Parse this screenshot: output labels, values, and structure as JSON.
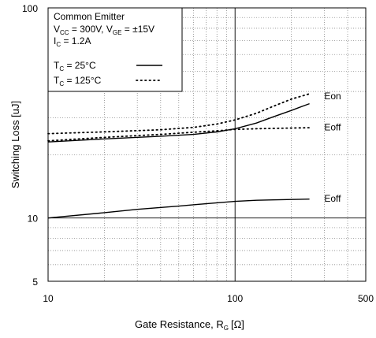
{
  "chart_data": {
    "type": "line",
    "xscale": "log",
    "yscale": "log",
    "xlim": [
      10,
      500
    ],
    "ylim": [
      5,
      100
    ],
    "grid": true,
    "xlabel": "Gate Resistance, R",
    "xlabel_sub": "G",
    "xlabel_unit": "[Ω]",
    "ylabel": "Switching Loss [uJ]",
    "xticks": [
      {
        "value": 10,
        "label": "10"
      },
      {
        "value": 100,
        "label": "100"
      },
      {
        "value": 500,
        "label": "500"
      }
    ],
    "yticks": [
      {
        "value": 5,
        "label": "5"
      },
      {
        "value": 10,
        "label": "10"
      },
      {
        "value": 100,
        "label": "100"
      }
    ],
    "legend": {
      "placement": "top-left",
      "title": "Common Emitter",
      "conditions": [
        {
          "parts": [
            [
              "V",
              "CC",
              " = 300V, "
            ],
            [
              "V",
              "GE",
              " = ±15V"
            ]
          ]
        },
        {
          "parts": [
            [
              "I",
              "C",
              " = 1.2A"
            ]
          ]
        }
      ],
      "entries": [
        {
          "symbol": "T",
          "sub": "C",
          "text": " =   25°C",
          "style": "solid"
        },
        {
          "symbol": "T",
          "sub": "C",
          "text": " = 125°C",
          "style": "dotted"
        }
      ]
    },
    "series": [
      {
        "label": "Eon",
        "style": "solid",
        "temp": "25°C",
        "x": [
          10,
          20,
          40,
          60,
          80,
          100,
          130,
          160,
          200,
          250
        ],
        "y": [
          23,
          23.8,
          24.5,
          25.0,
          25.7,
          26.6,
          28.3,
          30.3,
          32.5,
          35.0
        ]
      },
      {
        "label": "Eon",
        "style": "dotted",
        "temp": "125°C",
        "x": [
          10,
          20,
          40,
          60,
          80,
          100,
          130,
          160,
          200,
          250
        ],
        "y": [
          25.2,
          25.7,
          26.3,
          27.0,
          28.0,
          29.3,
          31.5,
          34.0,
          36.8,
          39.0
        ]
      },
      {
        "label": "Eoff",
        "style": "dotted",
        "temp": "125°C",
        "x": [
          10,
          20,
          40,
          60,
          80,
          100,
          130,
          160,
          200,
          250
        ],
        "y": [
          23.3,
          24.2,
          25.0,
          25.6,
          26.0,
          26.4,
          26.6,
          26.7,
          26.8,
          26.9
        ]
      },
      {
        "label": "Eoff",
        "style": "solid",
        "temp": "25°C",
        "x": [
          10,
          20,
          30,
          50,
          70,
          100,
          130,
          160,
          200,
          250
        ],
        "y": [
          10.0,
          10.6,
          11.0,
          11.4,
          11.7,
          12.0,
          12.15,
          12.2,
          12.25,
          12.3
        ]
      }
    ],
    "annotations": [
      {
        "text": "Eon",
        "x": 300,
        "y": 38
      },
      {
        "text": "Eoff",
        "x": 300,
        "y": 27
      },
      {
        "text": "Eoff",
        "x": 300,
        "y": 12.4
      }
    ]
  }
}
